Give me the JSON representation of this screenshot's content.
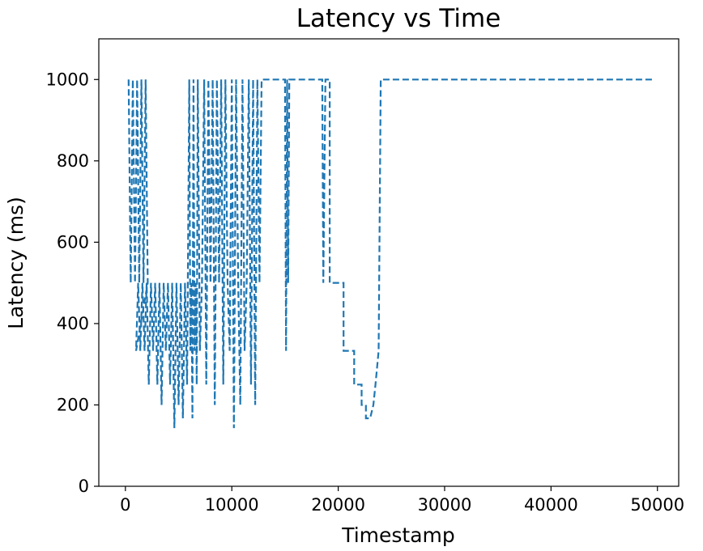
{
  "chart_data": {
    "type": "line",
    "title": "Latency vs Time",
    "xlabel": "Timestamp",
    "ylabel": "Latency (ms)",
    "xlim": [
      -2500,
      52000
    ],
    "ylim": [
      0,
      1100
    ],
    "xticks": [
      0,
      10000,
      20000,
      30000,
      40000,
      50000
    ],
    "yticks": [
      0,
      200,
      400,
      600,
      800,
      1000
    ],
    "grid": false,
    "legend": "none",
    "line_style": "dashed",
    "color": "#1f77b4",
    "series": [
      {
        "points": [
          [
            300,
            1000
          ],
          [
            500,
            500
          ],
          [
            700,
            1000
          ],
          [
            900,
            500
          ],
          [
            1100,
            1000
          ],
          [
            1300,
            500
          ],
          [
            1500,
            1000
          ],
          [
            1700,
            500
          ],
          [
            1900,
            1000
          ],
          [
            2100,
            500
          ],
          [
            1000,
            333
          ],
          [
            1200,
            500
          ],
          [
            1400,
            333
          ],
          [
            1600,
            500
          ],
          [
            1800,
            333
          ],
          [
            2000,
            500
          ],
          [
            2200,
            250
          ],
          [
            2400,
            500
          ],
          [
            2600,
            333
          ],
          [
            2800,
            500
          ],
          [
            3000,
            250
          ],
          [
            3200,
            500
          ],
          [
            3400,
            200
          ],
          [
            3600,
            500
          ],
          [
            3800,
            333
          ],
          [
            4000,
            500
          ],
          [
            4200,
            250
          ],
          [
            4400,
            500
          ],
          [
            4600,
            143
          ],
          [
            4800,
            500
          ],
          [
            5000,
            200
          ],
          [
            5200,
            500
          ],
          [
            5400,
            167
          ],
          [
            5600,
            500
          ],
          [
            5800,
            250
          ],
          [
            6000,
            1000
          ],
          [
            6100,
            333
          ],
          [
            6200,
            500
          ],
          [
            6300,
            167
          ],
          [
            6400,
            1000
          ],
          [
            6500,
            333
          ],
          [
            6600,
            500
          ],
          [
            6700,
            250
          ],
          [
            6800,
            1000
          ],
          [
            7000,
            333
          ],
          [
            7200,
            500
          ],
          [
            7400,
            1000
          ],
          [
            7600,
            250
          ],
          [
            7800,
            1000
          ],
          [
            8000,
            500
          ],
          [
            8200,
            1000
          ],
          [
            8400,
            200
          ],
          [
            8600,
            1000
          ],
          [
            8800,
            500
          ],
          [
            9000,
            1000
          ],
          [
            9200,
            250
          ],
          [
            9400,
            1000
          ],
          [
            9600,
            500
          ],
          [
            9800,
            333
          ],
          [
            10000,
            1000
          ],
          [
            10200,
            143
          ],
          [
            10400,
            1000
          ],
          [
            10600,
            500
          ],
          [
            10800,
            200
          ],
          [
            11000,
            1000
          ],
          [
            11200,
            333
          ],
          [
            11400,
            500
          ],
          [
            11600,
            1000
          ],
          [
            11800,
            250
          ],
          [
            12000,
            1000
          ],
          [
            12200,
            200
          ],
          [
            12400,
            1000
          ],
          [
            12600,
            500
          ],
          [
            12800,
            1000
          ],
          [
            15000,
            1000
          ],
          [
            15100,
            333
          ],
          [
            15200,
            1000
          ],
          [
            15300,
            500
          ],
          [
            15400,
            1000
          ],
          [
            18500,
            1000
          ],
          [
            18600,
            500
          ],
          [
            18800,
            1000
          ],
          [
            19200,
            1000
          ],
          [
            19200,
            500
          ],
          [
            20500,
            500
          ],
          [
            20500,
            333
          ],
          [
            21500,
            333
          ],
          [
            21500,
            250
          ],
          [
            22200,
            250
          ],
          [
            22200,
            200
          ],
          [
            22600,
            200
          ],
          [
            22600,
            167
          ],
          [
            23000,
            167
          ],
          [
            23300,
            200
          ],
          [
            23500,
            250
          ],
          [
            23800,
            333
          ],
          [
            24000,
            1000
          ],
          [
            49500,
            1000
          ]
        ]
      }
    ]
  }
}
